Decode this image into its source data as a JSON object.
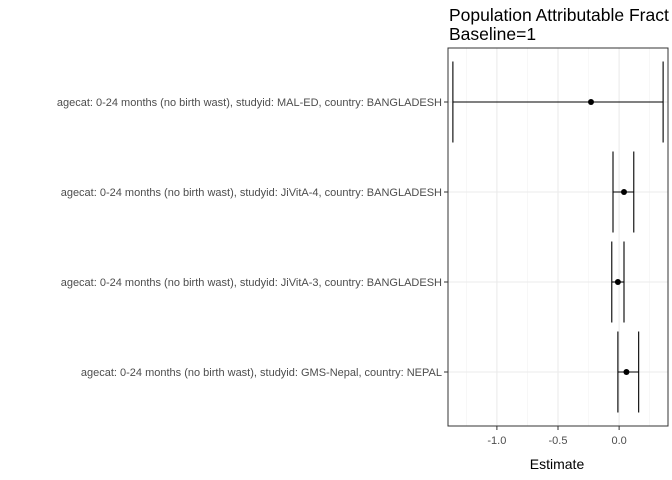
{
  "chart_data": {
    "type": "scatter",
    "title": "Population Attributable Fract",
    "subtitle": "Baseline=1",
    "xlabel": "Estimate",
    "ylabel": "",
    "xlim": [
      -1.4,
      0.4
    ],
    "x_ticks": [
      -1.0,
      -0.5,
      0.0
    ],
    "x_tick_labels": [
      "-1.0",
      "-0.5",
      "0.0"
    ],
    "grid": true,
    "categories": [
      "agecat: 0-24 months (no birth wast), studyid: MAL-ED, country: BANGLADESH",
      "agecat: 0-24 months (no birth wast), studyid: JiVitA-4, country: BANGLADESH",
      "agecat: 0-24 months (no birth wast), studyid: JiVitA-3, country: BANGLADESH",
      "agecat: 0-24 months (no birth wast), studyid: GMS-Nepal, country: NEPAL"
    ],
    "estimates": [
      -0.23,
      0.04,
      -0.01,
      0.06
    ],
    "lower": [
      -1.36,
      -0.05,
      -0.06,
      -0.01
    ],
    "upper": [
      0.36,
      0.12,
      0.04,
      0.16
    ]
  }
}
